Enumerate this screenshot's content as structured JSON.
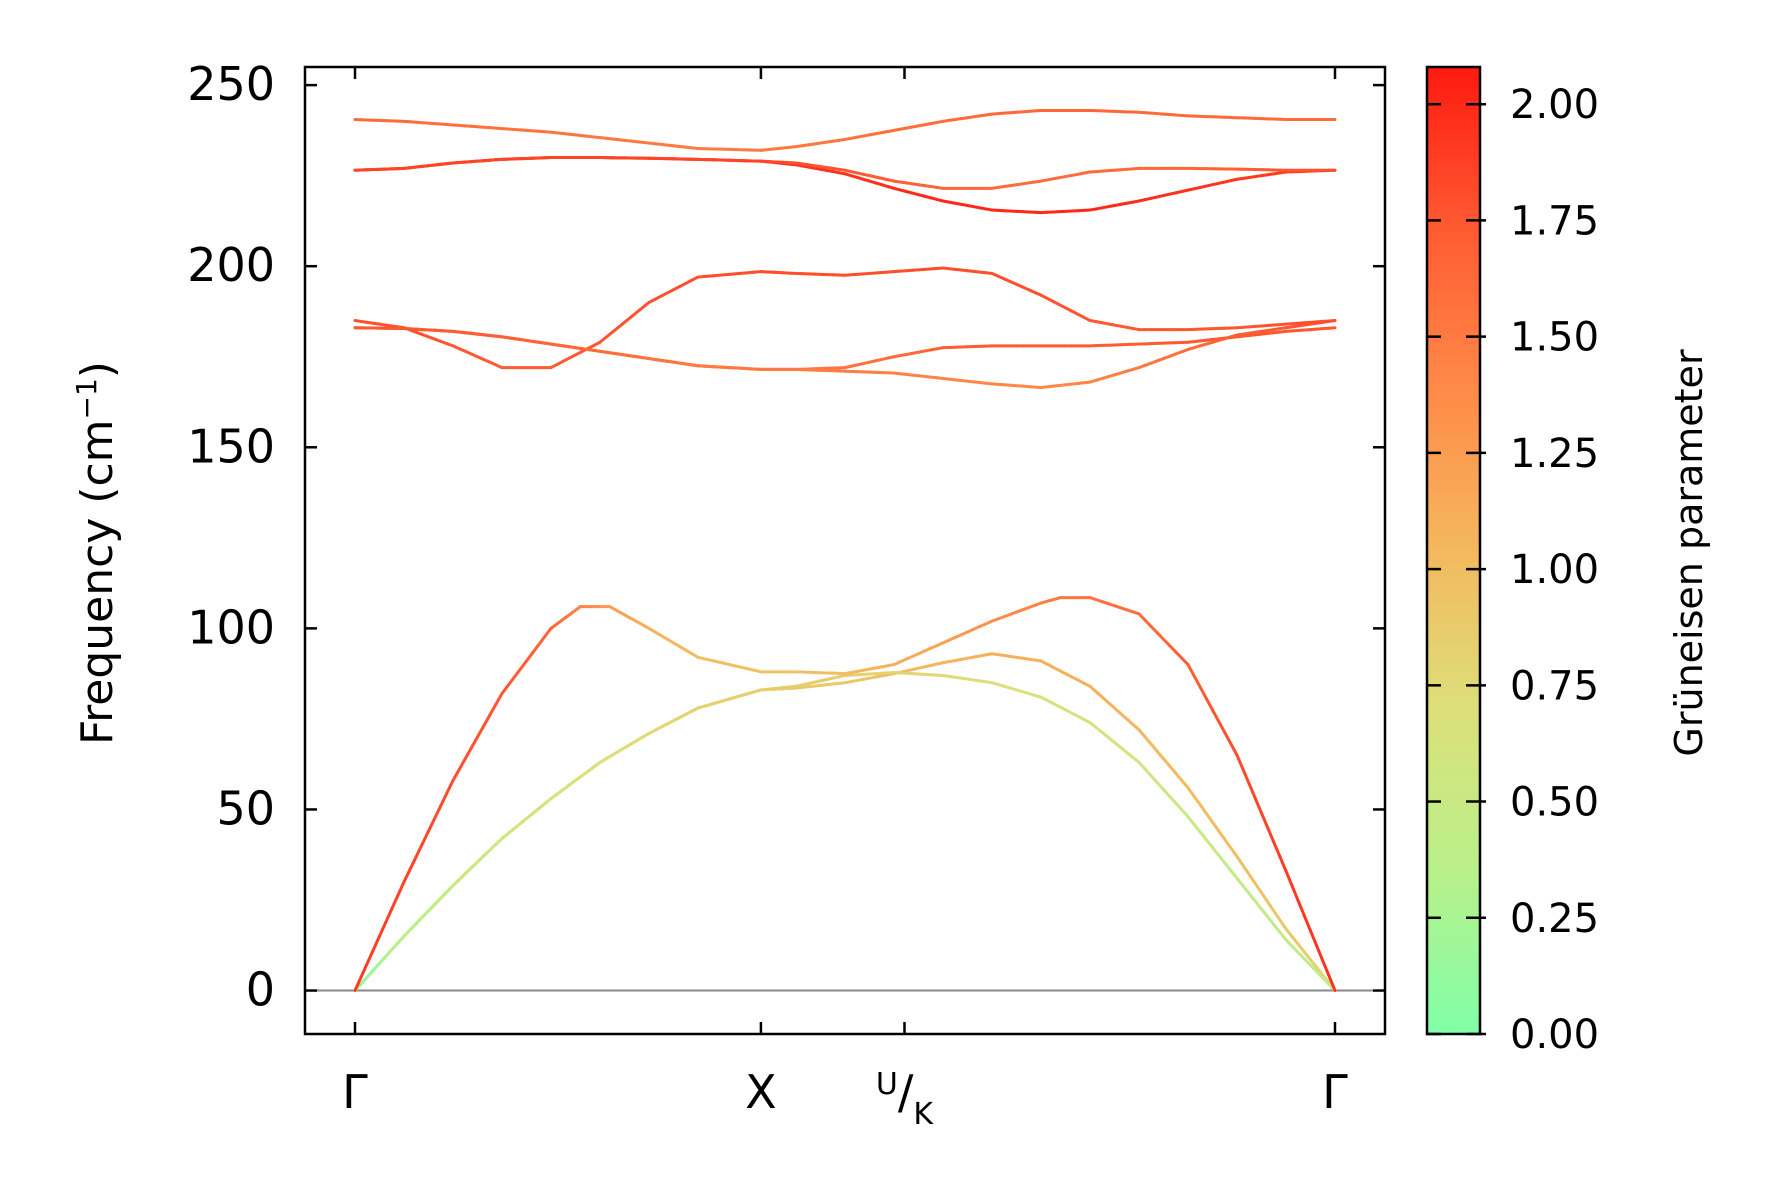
{
  "chart_data": {
    "type": "line",
    "ylabel": "Frequency (cm⁻¹)",
    "ylabel_text": "Frequency (cm",
    "ylabel_sup": "−1",
    "ylabel_close": ")",
    "ylim": [
      -12,
      255
    ],
    "yticks": [
      0,
      50,
      100,
      150,
      200,
      250
    ],
    "xlim": [
      0,
      1
    ],
    "xticks": [
      {
        "x": 0.0,
        "label": "Γ"
      },
      {
        "x": 0.4142,
        "label": "X"
      },
      {
        "x": 0.5607,
        "label_sup": "U",
        "label_main": "/",
        "label_sub": "K"
      },
      {
        "x": 1.0,
        "label": "Γ"
      }
    ],
    "zero_line": 0,
    "colorbar": {
      "label": "Grüneisen parameter",
      "range": [
        0.0,
        2.08
      ],
      "ticks": [
        "0.00",
        "0.25",
        "0.50",
        "0.75",
        "1.00",
        "1.25",
        "1.50",
        "1.75",
        "2.00"
      ],
      "colors": [
        "#80ffa8",
        "#b8f08a",
        "#dce07a",
        "#f4b85e",
        "#ff8a48",
        "#ff5a32",
        "#ff1a10"
      ]
    },
    "series": [
      {
        "x": [
          0,
          0.05,
          0.1,
          0.15,
          0.2,
          0.25,
          0.3,
          0.35,
          0.4142,
          0.45,
          0.5,
          0.55,
          0.6,
          0.65,
          0.7,
          0.75,
          0.8,
          0.85,
          0.9,
          0.95,
          1.0
        ],
        "y": [
          0,
          15,
          29,
          42,
          53,
          63,
          71,
          78,
          83,
          83.5,
          85,
          87.5,
          90.5,
          93,
          91,
          84,
          72,
          56,
          37,
          17,
          0
        ],
        "g": [
          0.1,
          0.4,
          0.5,
          0.55,
          0.62,
          0.7,
          0.75,
          0.8,
          0.85,
          0.88,
          0.9,
          1.0,
          1.05,
          1.1,
          1.1,
          1.1,
          1.05,
          1.0,
          1.0,
          0.9,
          0.8
        ]
      },
      {
        "x": [
          0,
          0.05,
          0.1,
          0.15,
          0.2,
          0.25,
          0.3,
          0.35,
          0.4142,
          0.45,
          0.5,
          0.55,
          0.6,
          0.65,
          0.7,
          0.75,
          0.8,
          0.85,
          0.9,
          0.95,
          1.0
        ],
        "y": [
          0,
          15,
          29,
          42,
          53,
          63,
          71,
          78,
          83,
          84,
          87,
          87.8,
          87,
          85,
          81,
          74,
          63,
          48,
          31,
          14,
          0
        ],
        "g": [
          0.1,
          0.4,
          0.5,
          0.55,
          0.62,
          0.7,
          0.75,
          0.8,
          0.85,
          0.85,
          0.85,
          0.8,
          0.75,
          0.7,
          0.65,
          0.6,
          0.55,
          0.5,
          0.45,
          0.45,
          0.4
        ]
      },
      {
        "x": [
          0,
          0.05,
          0.1,
          0.15,
          0.2,
          0.23,
          0.26,
          0.3,
          0.35,
          0.4142,
          0.45,
          0.5,
          0.55,
          0.6,
          0.65,
          0.7,
          0.72,
          0.75,
          0.8,
          0.85,
          0.9,
          0.95,
          1.0
        ],
        "y": [
          0,
          30,
          58,
          82,
          100,
          106,
          106,
          100,
          92,
          88,
          88,
          87.5,
          90,
          96,
          102,
          107,
          108.5,
          108.5,
          104,
          90,
          65,
          33,
          0
        ],
        "g": [
          1.9,
          1.85,
          1.8,
          1.75,
          1.65,
          1.45,
          1.25,
          1.1,
          1.0,
          0.95,
          0.95,
          1.0,
          1.1,
          1.2,
          1.35,
          1.45,
          1.5,
          1.55,
          1.6,
          1.7,
          1.8,
          1.9,
          1.95
        ]
      },
      {
        "x": [
          0,
          0.05,
          0.1,
          0.15,
          0.2,
          0.25,
          0.3,
          0.35,
          0.4142,
          0.45,
          0.5,
          0.55,
          0.6,
          0.65,
          0.7,
          0.75,
          0.8,
          0.85,
          0.9,
          0.95,
          1.0
        ],
        "y": [
          183,
          182.8,
          182,
          180.5,
          178.5,
          176.5,
          174.5,
          172.5,
          171.5,
          171.5,
          172,
          175,
          177.5,
          178,
          178,
          178,
          178.5,
          179,
          180.5,
          182,
          183
        ],
        "g": [
          1.75,
          1.75,
          1.72,
          1.7,
          1.65,
          1.6,
          1.6,
          1.55,
          1.5,
          1.5,
          1.55,
          1.6,
          1.7,
          1.72,
          1.72,
          1.72,
          1.72,
          1.75,
          1.75,
          1.75,
          1.75
        ]
      },
      {
        "x": [
          0,
          0.05,
          0.1,
          0.15,
          0.2,
          0.25,
          0.3,
          0.35,
          0.4142,
          0.45,
          0.5,
          0.55,
          0.6,
          0.65,
          0.7,
          0.75,
          0.8,
          0.85,
          0.9,
          0.95,
          1.0
        ],
        "y": [
          185,
          183,
          178,
          172,
          172,
          179,
          190,
          197,
          198.5,
          198,
          197.5,
          198.5,
          199.5,
          198,
          192,
          185,
          182.5,
          182.5,
          183,
          184,
          185
        ],
        "g": [
          1.8,
          1.78,
          1.75,
          1.72,
          1.72,
          1.75,
          1.78,
          1.8,
          1.8,
          1.8,
          1.8,
          1.8,
          1.8,
          1.8,
          1.78,
          1.75,
          1.75,
          1.75,
          1.75,
          1.78,
          1.8
        ]
      },
      {
        "x": [
          0,
          0.05,
          0.1,
          0.15,
          0.2,
          0.25,
          0.3,
          0.35,
          0.4142,
          0.45,
          0.5,
          0.55,
          0.6,
          0.65,
          0.7,
          0.75,
          0.8,
          0.85,
          0.9,
          0.95,
          1.0
        ],
        "y": [
          183,
          182.8,
          182,
          180.5,
          178.5,
          176.5,
          174.5,
          172.5,
          171.5,
          171.5,
          171,
          170.5,
          169,
          167.5,
          166.5,
          168,
          172,
          177,
          181,
          183,
          185
        ],
        "g": [
          1.75,
          1.75,
          1.72,
          1.7,
          1.65,
          1.6,
          1.55,
          1.5,
          1.5,
          1.5,
          1.48,
          1.45,
          1.42,
          1.4,
          1.4,
          1.42,
          1.5,
          1.6,
          1.7,
          1.75,
          1.8
        ]
      },
      {
        "x": [
          0,
          0.05,
          0.1,
          0.15,
          0.2,
          0.25,
          0.3,
          0.35,
          0.4142,
          0.45,
          0.5,
          0.55,
          0.6,
          0.65,
          0.7,
          0.75,
          0.8,
          0.85,
          0.9,
          0.95,
          1.0
        ],
        "y": [
          226.5,
          227,
          228.5,
          229.5,
          230,
          230,
          229.8,
          229.5,
          229,
          228,
          225.5,
          221.5,
          218,
          215.5,
          214.8,
          215.5,
          218,
          221,
          224,
          226,
          226.5
        ],
        "g": [
          1.85,
          1.85,
          1.85,
          1.85,
          1.88,
          1.9,
          1.9,
          1.92,
          1.95,
          1.95,
          1.95,
          1.98,
          2.0,
          2.0,
          2.0,
          2.0,
          1.98,
          1.95,
          1.92,
          1.9,
          1.85
        ]
      },
      {
        "x": [
          0,
          0.05,
          0.1,
          0.15,
          0.2,
          0.25,
          0.3,
          0.35,
          0.4142,
          0.45,
          0.5,
          0.55,
          0.6,
          0.65,
          0.7,
          0.75,
          0.8,
          0.85,
          0.9,
          0.95,
          1.0
        ],
        "y": [
          226.5,
          227,
          228.5,
          229.5,
          230,
          230,
          229.8,
          229.5,
          229,
          228.5,
          226.5,
          223.5,
          221.5,
          221.5,
          223.5,
          226,
          227,
          227,
          226.8,
          226.5,
          226.5
        ],
        "g": [
          1.85,
          1.85,
          1.85,
          1.85,
          1.85,
          1.85,
          1.85,
          1.85,
          1.85,
          1.8,
          1.75,
          1.7,
          1.65,
          1.62,
          1.6,
          1.6,
          1.62,
          1.65,
          1.7,
          1.75,
          1.8
        ]
      },
      {
        "x": [
          0,
          0.05,
          0.1,
          0.15,
          0.2,
          0.25,
          0.3,
          0.35,
          0.4142,
          0.45,
          0.5,
          0.55,
          0.6,
          0.65,
          0.7,
          0.75,
          0.8,
          0.85,
          0.9,
          0.95,
          1.0
        ],
        "y": [
          240.5,
          240,
          239,
          238,
          237,
          235.5,
          234,
          232.5,
          232,
          233,
          235,
          237.5,
          240,
          242,
          243,
          243,
          242.5,
          241.5,
          241,
          240.5,
          240.5
        ],
        "g": [
          1.6,
          1.6,
          1.58,
          1.56,
          1.55,
          1.52,
          1.5,
          1.5,
          1.5,
          1.52,
          1.55,
          1.58,
          1.6,
          1.62,
          1.65,
          1.65,
          1.62,
          1.6,
          1.6,
          1.6,
          1.6
        ]
      }
    ]
  }
}
